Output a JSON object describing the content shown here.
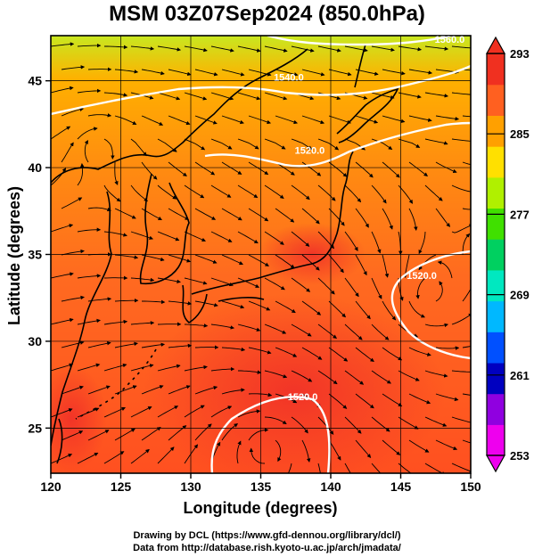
{
  "title": "MSM 03Z07Sep2024 (850.0hPa)",
  "x_axis": {
    "label": "Longitude (degrees)",
    "ticks": [
      {
        "label": "120",
        "value": 120
      },
      {
        "label": "125",
        "value": 125
      },
      {
        "label": "130",
        "value": 130
      },
      {
        "label": "135",
        "value": 135
      },
      {
        "label": "140",
        "value": 140
      },
      {
        "label": "145",
        "value": 145
      },
      {
        "label": "150",
        "value": 150
      }
    ],
    "range": [
      120,
      150
    ]
  },
  "y_axis": {
    "label": "Latitude  (degrees)",
    "ticks": [
      {
        "label": "25",
        "value": 25
      },
      {
        "label": "30",
        "value": 30
      },
      {
        "label": "35",
        "value": 35
      },
      {
        "label": "40",
        "value": 40
      },
      {
        "label": "45",
        "value": 45
      }
    ],
    "range": [
      22.4,
      47.6
    ]
  },
  "colorbar": {
    "ticks": [
      {
        "label": "293",
        "value": 293
      },
      {
        "label": "285",
        "value": 285
      },
      {
        "label": "277",
        "value": 277
      },
      {
        "label": "269",
        "value": 269
      },
      {
        "label": "261",
        "value": 261
      },
      {
        "label": "253",
        "value": 253
      }
    ],
    "range": [
      253,
      293
    ],
    "colors": [
      "#ee00ee",
      "#9000e0",
      "#0000c0",
      "#0050ff",
      "#00b8ff",
      "#00e8c0",
      "#00d060",
      "#40e000",
      "#b0f000",
      "#ffe000",
      "#ffa000",
      "#ff6020",
      "#f03020"
    ]
  },
  "contours": [
    {
      "label": "1560.0",
      "lon": 148.5,
      "lat": 47.2
    },
    {
      "label": "1540.0",
      "lon": 137.0,
      "lat": 45.0
    },
    {
      "label": "1520.0",
      "lon": 138.5,
      "lat": 40.8
    },
    {
      "label": "1520.0",
      "lon": 146.5,
      "lat": 33.6
    },
    {
      "label": "1520.0",
      "lon": 138.0,
      "lat": 26.6
    }
  ],
  "credits": {
    "line1": "Drawing by DCL (https://www.gfd-dennou.org/library/dcl/)",
    "line2": "Data from http://database.rish.kyoto-u.ac.jp/arch/jmadata/"
  }
}
